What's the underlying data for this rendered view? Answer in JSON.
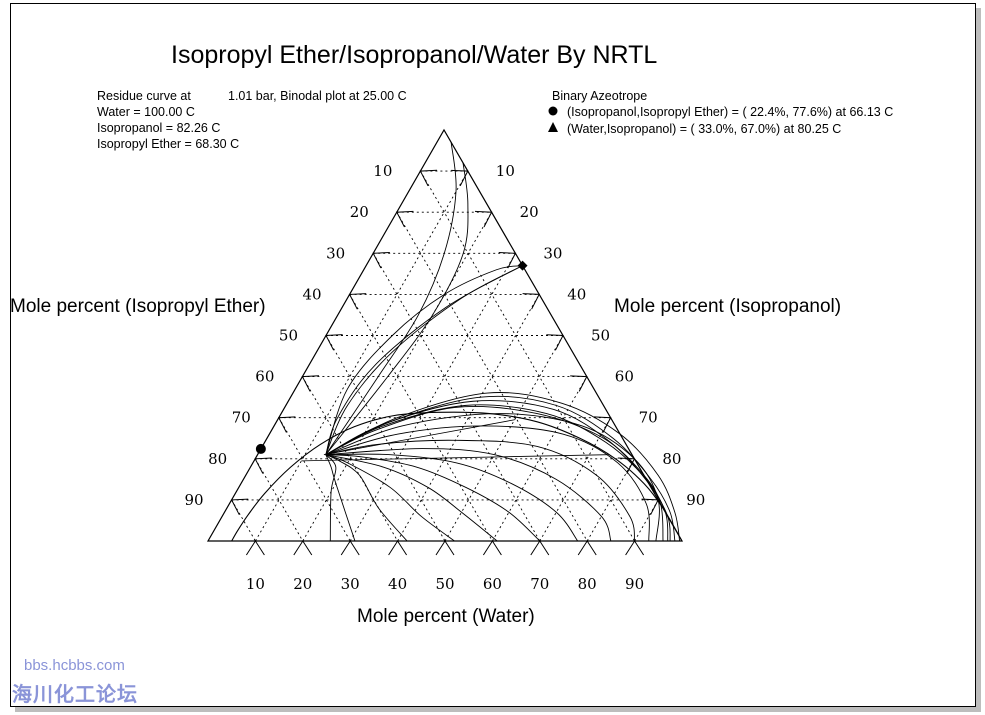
{
  "chart_data": {
    "type": "ternary",
    "title": "Isopropyl Ether/Isopropanol/Water By NRTL",
    "info": {
      "line1_prefix": "Residue curve at",
      "line1_value": "1.01 bar, Binodal plot at   25.00 C",
      "water": "Water =  100.00 C",
      "isopropanol": "Isopropanol =   82.26 C",
      "ether": "Isopropyl Ether =   68.30 C"
    },
    "azeotrope_header": "Binary Azeotrope",
    "azeotropes": [
      {
        "marker": "circle",
        "label": "(Isopropanol,Isopropyl Ether) = ( 22.4%, 77.6%) at   66.13 C",
        "water": 0,
        "isopropanol": 22.4,
        "ether": 77.6
      },
      {
        "marker": "triangle",
        "label": "(Water,Isopropanol) = ( 33.0%, 67.0%) at   80.25 C",
        "water": 33.0,
        "isopropanol": 67.0,
        "ether": 0
      }
    ],
    "axes": {
      "left": "Mole percent (Isopropyl Ether)",
      "right": "Mole percent (Isopropanol)",
      "bottom": "Mole percent (Water)"
    },
    "ticks": {
      "left": [
        "10",
        "20",
        "30",
        "40",
        "50",
        "60",
        "70",
        "80",
        "90"
      ],
      "right": [
        "90",
        "80",
        "70",
        "60",
        "50",
        "40",
        "30",
        "20",
        "10"
      ],
      "bottom": [
        "10",
        "20",
        "30",
        "40",
        "50",
        "60",
        "70",
        "80",
        "90"
      ]
    },
    "binodal": [
      [
        100,
        0
      ],
      [
        92,
        8
      ],
      [
        85,
        14
      ],
      [
        76,
        20
      ],
      [
        66,
        25
      ],
      [
        55,
        29
      ],
      [
        44,
        31
      ],
      [
        33,
        31.3
      ],
      [
        24,
        30.5
      ],
      [
        17,
        27.8
      ],
      [
        12,
        23.5
      ],
      [
        8.5,
        18
      ],
      [
        6.2,
        11.6
      ],
      [
        5.3,
        6.4
      ],
      [
        5.0,
        2.5
      ],
      [
        5.0,
        0
      ]
    ],
    "residue_curves": [
      [
        [
          25.8,
          0
        ],
        [
          20,
          12
        ],
        [
          18,
          18
        ],
        [
          14.4,
          21
        ]
      ],
      [
        [
          31,
          0
        ],
        [
          20,
          14
        ],
        [
          17,
          18
        ],
        [
          14.4,
          21
        ]
      ],
      [
        [
          42,
          0
        ],
        [
          32,
          8
        ],
        [
          24,
          16
        ],
        [
          18,
          19.5
        ],
        [
          14.4,
          21
        ]
      ],
      [
        [
          52,
          0
        ],
        [
          42,
          6
        ],
        [
          32,
          13
        ],
        [
          20,
          19
        ],
        [
          14.4,
          21
        ]
      ],
      [
        [
          61,
          0
        ],
        [
          50,
          7
        ],
        [
          40,
          13
        ],
        [
          28,
          18
        ],
        [
          14.4,
          21
        ]
      ],
      [
        [
          70,
          0
        ],
        [
          60,
          7
        ],
        [
          48,
          13
        ],
        [
          35,
          18
        ],
        [
          22,
          20.5
        ],
        [
          14.4,
          21
        ]
      ],
      [
        [
          78,
          0
        ],
        [
          70,
          7
        ],
        [
          57,
          14
        ],
        [
          43,
          19
        ],
        [
          28,
          21
        ],
        [
          14.4,
          21
        ]
      ],
      [
        [
          85,
          0
        ],
        [
          80,
          6
        ],
        [
          66,
          15
        ],
        [
          50,
          21
        ],
        [
          34,
          22.5
        ],
        [
          14.4,
          21
        ]
      ],
      [
        [
          90,
          0
        ],
        [
          86,
          6
        ],
        [
          74,
          16
        ],
        [
          58,
          23
        ],
        [
          40,
          24.5
        ],
        [
          24,
          23.5
        ],
        [
          14.4,
          21
        ]
      ],
      [
        [
          93,
          0
        ],
        [
          88,
          9
        ],
        [
          77,
          19
        ],
        [
          62,
          26
        ],
        [
          44,
          28
        ],
        [
          27,
          26
        ],
        [
          14.4,
          21
        ]
      ],
      [
        [
          94.5,
          0
        ],
        [
          90,
          10
        ],
        [
          80,
          20
        ],
        [
          65,
          28
        ],
        [
          46,
          31
        ],
        [
          27,
          28
        ],
        [
          14.4,
          21
        ]
      ],
      [
        [
          96,
          0
        ],
        [
          91,
          9
        ],
        [
          84,
          16
        ],
        [
          71,
          25
        ],
        [
          54,
          31
        ],
        [
          36,
          32.5
        ],
        [
          22,
          27
        ],
        [
          14.4,
          21
        ]
      ],
      [
        [
          97,
          0
        ],
        [
          93,
          7
        ],
        [
          85,
          15
        ],
        [
          72,
          24
        ],
        [
          56,
          31
        ],
        [
          38,
          33
        ],
        [
          23,
          28
        ],
        [
          14.4,
          21
        ]
      ],
      [
        [
          97.5,
          0
        ],
        [
          94,
          6
        ],
        [
          86,
          14
        ],
        [
          73,
          24
        ],
        [
          57,
          32
        ],
        [
          39,
          34
        ],
        [
          23,
          28.5
        ],
        [
          14.4,
          21
        ]
      ],
      [
        [
          98.5,
          0
        ],
        [
          94,
          7
        ],
        [
          86,
          15
        ],
        [
          73,
          25
        ],
        [
          57,
          33
        ],
        [
          40,
          35
        ],
        [
          24,
          29
        ],
        [
          14.4,
          21
        ]
      ],
      [
        [
          99.5,
          0
        ],
        [
          95,
          7
        ],
        [
          87,
          16
        ],
        [
          74,
          26
        ],
        [
          58,
          33.5
        ],
        [
          41,
          36
        ],
        [
          25,
          30
        ],
        [
          14.4,
          21
        ]
      ],
      [
        [
          33,
          67
        ],
        [
          28,
          66
        ],
        [
          20,
          60
        ],
        [
          14,
          50
        ],
        [
          11,
          37
        ],
        [
          14.4,
          21
        ]
      ],
      [
        [
          33,
          67
        ],
        [
          24,
          59
        ],
        [
          16,
          46
        ],
        [
          13,
          33
        ],
        [
          14.4,
          21
        ]
      ],
      [
        [
          33,
          67
        ],
        [
          22,
          57
        ],
        [
          14,
          43
        ],
        [
          12.4,
          30
        ],
        [
          14.4,
          21
        ]
      ],
      [
        [
          3,
          97
        ],
        [
          10,
          85
        ],
        [
          15,
          70
        ],
        [
          17,
          55
        ],
        [
          16,
          40
        ],
        [
          14.4,
          21
        ]
      ],
      [
        [
          8,
          92
        ],
        [
          14,
          82
        ],
        [
          19,
          70
        ],
        [
          20,
          55
        ],
        [
          18,
          40
        ],
        [
          14.4,
          21
        ]
      ]
    ],
    "tie_lines": [
      [
        [
          50,
          29.5
        ],
        [
          14,
          21
        ]
      ],
      [
        [
          74,
          21
        ],
        [
          10,
          19.5
        ]
      ]
    ]
  },
  "watermark": {
    "url": "bbs.hcbbs.com",
    "site": "海川化工论坛"
  }
}
